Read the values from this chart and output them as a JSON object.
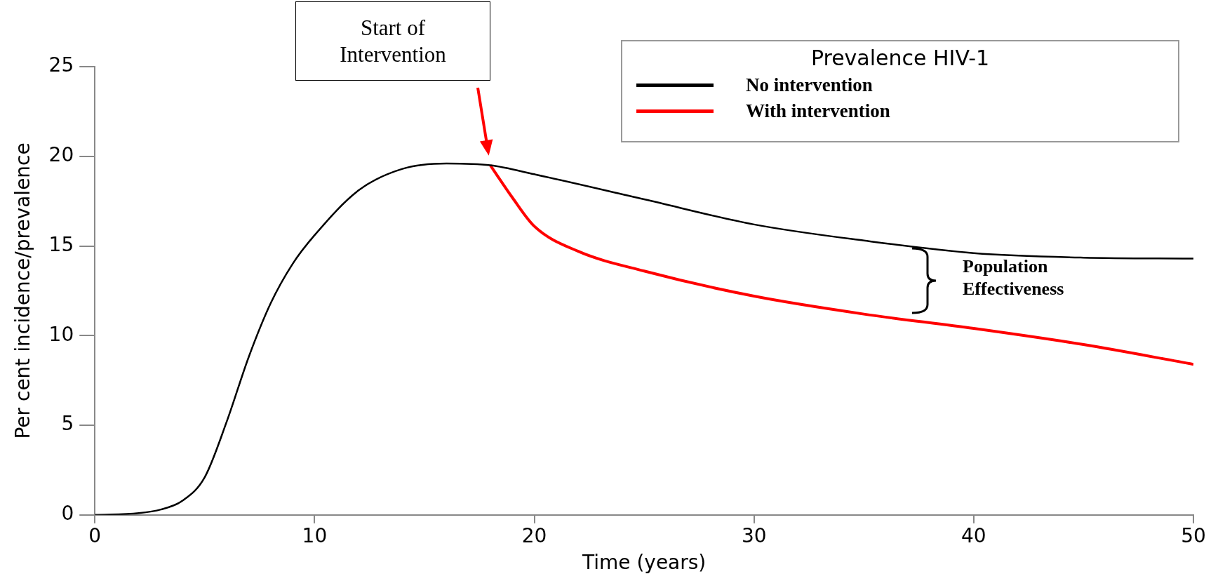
{
  "chart_data": {
    "type": "line",
    "xlabel": "Time (years)",
    "ylabel": "Per cent incidence/prevalence",
    "legend_title": "Prevalence HIV-1",
    "legend": "top right",
    "grid": false,
    "marker": "none",
    "line_style": "solid",
    "xlim": [
      0,
      50
    ],
    "xticks": [
      0,
      10,
      20,
      30,
      40,
      50
    ],
    "ylim": [
      0,
      25
    ],
    "yticks": [
      0,
      5,
      10,
      15,
      20,
      25
    ],
    "series": [
      {
        "name": "No intervention",
        "color": "#000000",
        "x": [
          0,
          2,
          3,
          4,
          5,
          6,
          7,
          8,
          9,
          10,
          12,
          14,
          16,
          18,
          20,
          25,
          30,
          35,
          40,
          45,
          50
        ],
        "values": [
          0,
          0.1,
          0.3,
          0.8,
          2.1,
          5.2,
          8.8,
          11.8,
          14,
          15.6,
          18.1,
          19.3,
          19.6,
          19.5,
          19,
          17.6,
          16.2,
          15.3,
          14.6,
          14.35,
          14.3
        ]
      },
      {
        "name": "With intervention",
        "color": "#ff0000",
        "x": [
          18,
          19,
          20,
          22,
          25,
          30,
          35,
          40,
          45,
          50
        ],
        "values": [
          19.5,
          17.7,
          16.1,
          14.7,
          13.6,
          12.2,
          11.2,
          10.4,
          9.5,
          8.4
        ]
      }
    ],
    "annotations": [
      "Start of Intervention",
      "Population Effectiveness"
    ]
  }
}
